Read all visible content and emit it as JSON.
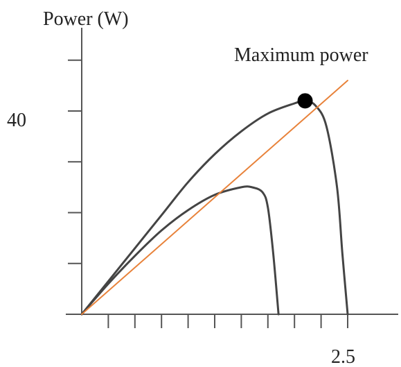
{
  "chart_data": {
    "type": "line",
    "ylabel": "Power (W)",
    "xlabel": "",
    "xlim": [
      0,
      2.75
    ],
    "ylim": [
      0,
      56
    ],
    "x_ticks": [
      0.25,
      0.5,
      0.75,
      1.0,
      1.25,
      1.5,
      1.75,
      2.0,
      2.25,
      2.5
    ],
    "y_ticks": [
      10,
      20,
      30,
      40,
      50
    ],
    "y_tick_labels": [
      {
        "value": 40,
        "label": "40"
      }
    ],
    "x_tick_labels": [
      {
        "value": 2.5,
        "label": "2.5"
      }
    ],
    "series": [
      {
        "x": [
          0,
          0.25,
          0.5,
          0.75,
          1.0,
          1.25,
          1.5,
          1.75,
          2.0,
          2.1,
          2.2,
          2.3,
          2.4,
          2.45,
          2.5
        ],
        "y": [
          0,
          6.5,
          13,
          19.5,
          26,
          31.5,
          36,
          39.5,
          41.5,
          42,
          41,
          37,
          25,
          12,
          0
        ],
        "color": "#444444"
      },
      {
        "x": [
          0,
          0.25,
          0.5,
          0.75,
          1.0,
          1.25,
          1.5,
          1.6,
          1.7,
          1.75,
          1.8,
          1.85
        ],
        "y": [
          0,
          6,
          11.5,
          16.5,
          20.5,
          23.5,
          25,
          25,
          24,
          21,
          12,
          0
        ],
        "color": "#444444"
      },
      {
        "x": [
          0,
          2.5
        ],
        "y": [
          0,
          46
        ],
        "color": "#e8823a"
      }
    ],
    "annotations": [
      {
        "text": "Maximum power",
        "x": 2.1,
        "y": 42,
        "marker": "filled-circle",
        "marker_color": "#000000"
      }
    ],
    "grid": false,
    "legend": "none"
  }
}
